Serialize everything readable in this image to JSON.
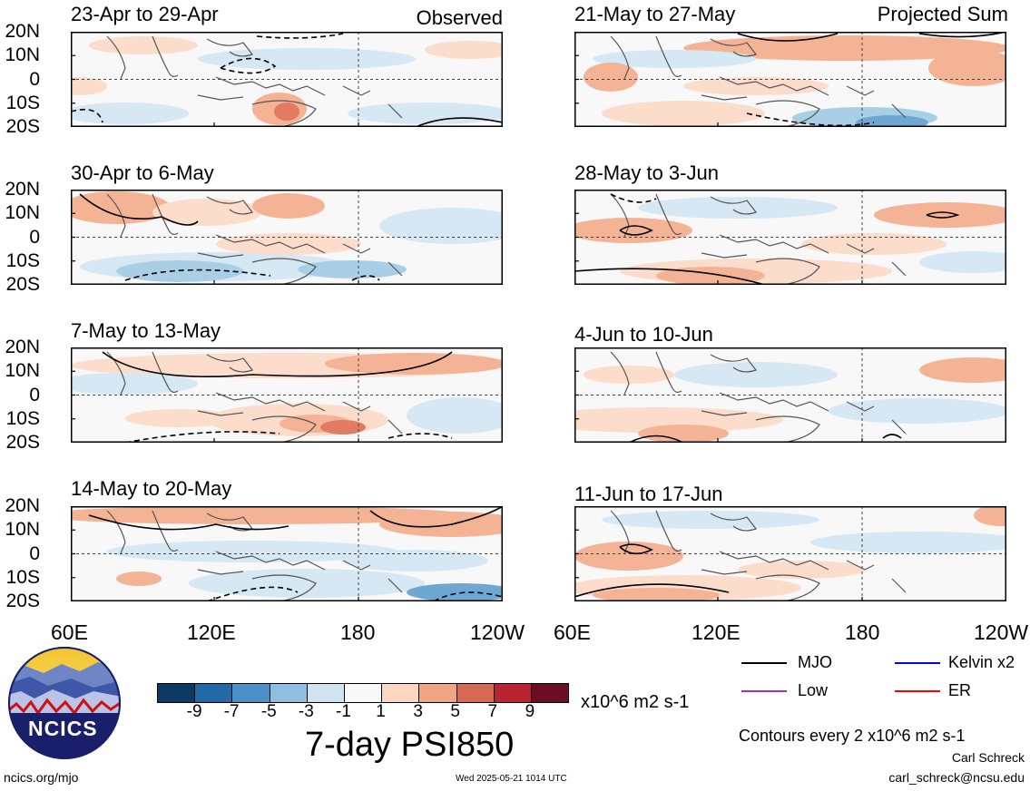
{
  "panels": {
    "left": [
      {
        "title": "23-Apr to 29-Apr",
        "label": "Observed"
      },
      {
        "title": "30-Apr to 6-May",
        "label": ""
      },
      {
        "title": "7-May to 13-May",
        "label": ""
      },
      {
        "title": "14-May to 20-May",
        "label": ""
      }
    ],
    "right": [
      {
        "title": "21-May to 27-May",
        "label": "Projected Sum"
      },
      {
        "title": "28-May to 3-Jun",
        "label": ""
      },
      {
        "title": "4-Jun to 10-Jun",
        "label": ""
      },
      {
        "title": "11-Jun to 17-Jun",
        "label": ""
      }
    ]
  },
  "lat_ticks": [
    "20N",
    "10N",
    "0",
    "10S",
    "20S"
  ],
  "lon_ticks": [
    "60E",
    "120E",
    "180",
    "120W"
  ],
  "colorbar": {
    "title": "7-day PSI850",
    "units": "x10^6 m2 s-1",
    "ticks": [
      "-9",
      "-7",
      "-5",
      "-3",
      "-1",
      "1",
      "3",
      "5",
      "7",
      "9"
    ],
    "colors": [
      "#0c3a63",
      "#2369a8",
      "#4a90c6",
      "#8fbfe0",
      "#cfe3f1",
      "#f8f8f8",
      "#fbd6c2",
      "#f0a584",
      "#d86a55",
      "#b82530",
      "#6d0d22"
    ]
  },
  "legend": {
    "items": [
      {
        "label": "MJO",
        "color": "#000000"
      },
      {
        "label": "Kelvin x2",
        "color": "#0000ff"
      },
      {
        "label": "Low",
        "color": "#9932cc"
      },
      {
        "label": "ER",
        "color": "#ff0000"
      }
    ],
    "contour_note": "Contours every 2 x10^6 m2 s-1",
    "author": "Carl Schreck",
    "email": "carl_schreck@ncsu.edu"
  },
  "footer": {
    "url": "ncics.org/mjo",
    "timestamp": "Wed 2025-05-21 1014 UTC",
    "logo_text": "NCICS"
  }
}
